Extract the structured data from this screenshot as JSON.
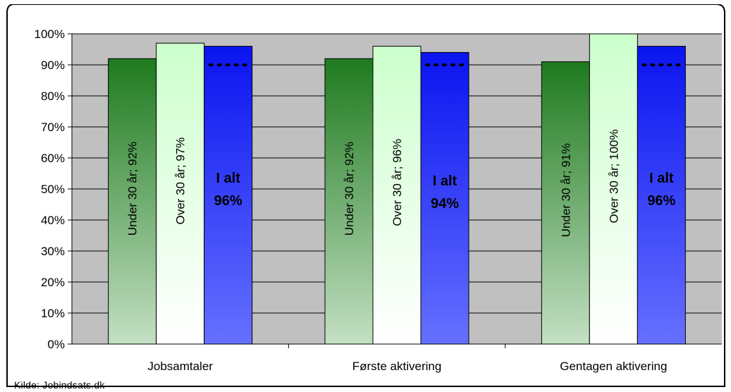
{
  "chart_data": {
    "type": "bar",
    "categories": [
      "Jobsamtaler",
      "Første aktivering",
      "Gentagen aktivering"
    ],
    "series": [
      {
        "name": "Under 30 år",
        "values": [
          92,
          92,
          91
        ],
        "labels": [
          "Under 30 år; 92%",
          "Under 30 år; 92%",
          "Under 30 år; 91%"
        ],
        "color_top": "#1e7a1e",
        "color_bottom": "#c4e0c4"
      },
      {
        "name": "Over 30 år",
        "values": [
          97,
          96,
          100
        ],
        "labels": [
          "Over 30 år; 97%",
          "Over 30 år; 96%",
          "Over 30 år; 100%"
        ],
        "color_top": "#ccffcc",
        "color_bottom": "#ffffff"
      },
      {
        "name": "I alt",
        "values": [
          96,
          94,
          96
        ],
        "labels": [
          [
            "I alt",
            "96%"
          ],
          [
            "I alt",
            "94%"
          ],
          [
            "I alt",
            "96%"
          ]
        ],
        "color_top": "#0a14f0",
        "color_bottom": "#6670ff"
      }
    ],
    "reference_line": {
      "value": 90,
      "style": "dotted"
    },
    "y_ticks": [
      "0%",
      "10%",
      "20%",
      "30%",
      "40%",
      "50%",
      "60%",
      "70%",
      "80%",
      "90%",
      "100%"
    ],
    "ylim": [
      0,
      100
    ],
    "grid": true,
    "plot_background": "#c0c0c0",
    "title": "",
    "xlabel": "",
    "ylabel": ""
  },
  "source": "Kilde: Jobindsats.dk"
}
